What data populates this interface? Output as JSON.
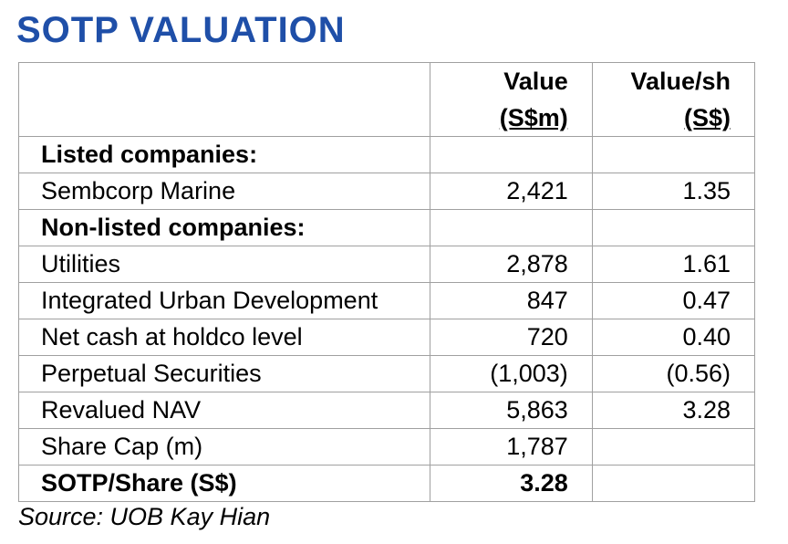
{
  "title": "SOTP VALUATION",
  "header": {
    "col_value": [
      "Value",
      "(S$m)"
    ],
    "col_value_sh": [
      "Value/sh",
      "(S$)"
    ]
  },
  "rows": [
    {
      "label": "Listed companies:",
      "value": "",
      "value_sh": "",
      "bold": true
    },
    {
      "label": "Sembcorp Marine",
      "value": "2,421",
      "value_sh": "1.35",
      "bold": false
    },
    {
      "label": "Non-listed companies:",
      "value": "",
      "value_sh": "",
      "bold": true
    },
    {
      "label": "Utilities",
      "value": "2,878",
      "value_sh": "1.61",
      "bold": false
    },
    {
      "label": "Integrated Urban Development",
      "value": "847",
      "value_sh": "0.47",
      "bold": false
    },
    {
      "label": "Net cash at holdco level",
      "value": "720",
      "value_sh": "0.40",
      "bold": false
    },
    {
      "label": "Perpetual Securities",
      "value": "(1,003)",
      "value_sh": "(0.56)",
      "bold": false
    },
    {
      "label": "Revalued NAV",
      "value": "5,863",
      "value_sh": "3.28",
      "bold": false
    },
    {
      "label": "Share Cap (m)",
      "value": "1,787",
      "value_sh": "",
      "bold": false
    },
    {
      "label": "SOTP/Share (S$)",
      "value": "3.28",
      "value_sh": "",
      "bold": true
    }
  ],
  "source": "Source: UOB Kay Hian"
}
